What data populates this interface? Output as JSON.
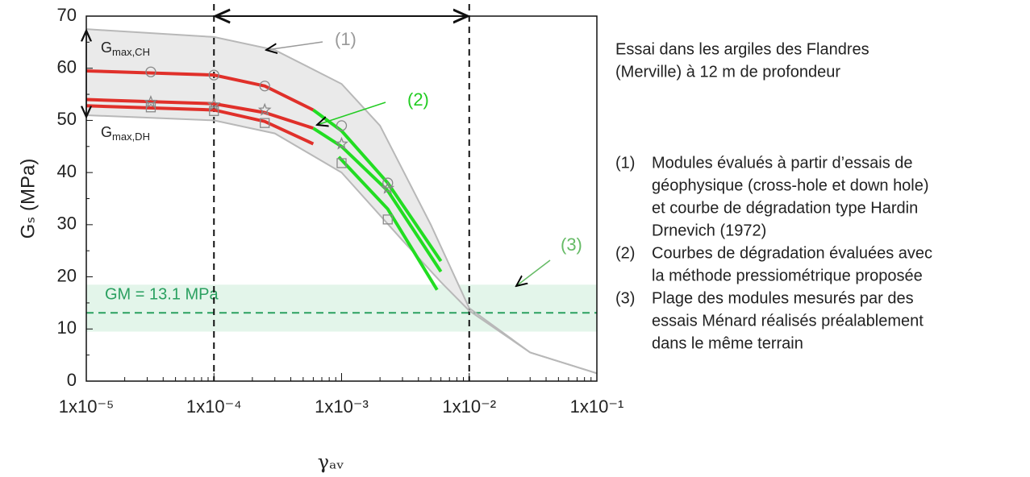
{
  "chart_data": {
    "type": "line",
    "xscale": "log",
    "y_label": "Gₛ (MPa)",
    "x_label": "γₐᵥ",
    "xlim": [
      1e-05,
      0.1
    ],
    "xticks": [
      {
        "value": 1e-05,
        "label": "1x10⁻⁵"
      },
      {
        "value": 0.0001,
        "label": "1x10⁻⁴"
      },
      {
        "value": 0.001,
        "label": "1x10⁻³"
      },
      {
        "value": 0.01,
        "label": "1x10⁻²"
      },
      {
        "value": 0.1,
        "label": "1x10⁻¹"
      }
    ],
    "ylim": [
      0,
      70
    ],
    "yticks": [
      0,
      10,
      20,
      30,
      40,
      50,
      60,
      70
    ],
    "vlines": [
      0.0001,
      0.01
    ],
    "band": [
      9.5,
      18.5
    ],
    "hline": {
      "value": 13.1,
      "label": "GM = 13.1 MPa"
    },
    "series": [
      {
        "color": "#b8b8b8",
        "x": [
          1e-05,
          0.0001,
          0.0003,
          0.001,
          0.002,
          0.005,
          0.01,
          0.03,
          0.1
        ],
        "values": [
          67.5,
          66,
          63.5,
          57,
          49,
          30,
          14,
          5.5,
          1.5
        ]
      },
      {
        "color": "#b8b8b8",
        "x": [
          1e-05,
          0.0001,
          0.0003,
          0.001,
          0.003,
          0.006,
          0.01,
          0.03,
          0.1
        ],
        "values": [
          51,
          50,
          47.5,
          40,
          27,
          19,
          13.5,
          5.5,
          1.5
        ]
      },
      {
        "color": "#e0302a",
        "x": [
          1e-05,
          0.0001,
          0.00025,
          0.0006
        ],
        "values": [
          59.5,
          58.7,
          56.6,
          52
        ]
      },
      {
        "color": "#e0302a",
        "x": [
          1e-05,
          0.0001,
          0.00025,
          0.0006
        ],
        "values": [
          54,
          53.2,
          51.5,
          48.5
        ]
      },
      {
        "color": "#e0302a",
        "x": [
          1e-05,
          0.0001,
          0.00025,
          0.0006
        ],
        "values": [
          52.8,
          52,
          49.8,
          45.5
        ]
      },
      {
        "color": "#22dd22",
        "x": [
          0.0006,
          0.001,
          0.0023,
          0.006
        ],
        "values": [
          52,
          48,
          38,
          23
        ]
      },
      {
        "color": "#22dd22",
        "x": [
          0.0006,
          0.001,
          0.0023,
          0.006
        ],
        "values": [
          48.5,
          45,
          36.5,
          21
        ]
      },
      {
        "color": "#22dd22",
        "x": [
          0.00095,
          0.0023,
          0.0056
        ],
        "values": [
          43,
          33,
          17.5
        ]
      },
      {
        "marker": "circle",
        "color": "#888888",
        "x": [
          3.2e-05,
          0.0001,
          0.00025,
          0.001,
          0.0023
        ],
        "values": [
          59.3,
          58.7,
          56.6,
          49,
          38
        ]
      },
      {
        "marker": "star",
        "color": "#888888",
        "x": [
          3.2e-05,
          0.0001,
          0.00025,
          0.001,
          0.0023
        ],
        "values": [
          53.5,
          53,
          52,
          45.5,
          37
        ]
      },
      {
        "marker": "square",
        "color": "#888888",
        "x": [
          3.2e-05,
          0.0001,
          0.00025,
          0.001,
          0.0023
        ],
        "values": [
          52.5,
          51.8,
          49.5,
          41.8,
          31
        ]
      }
    ],
    "annotations": [
      {
        "text": "(1)",
        "color": "#999999"
      },
      {
        "text": "(2)",
        "color": "#22cc22"
      },
      {
        "text": "(3)",
        "color": "#66bb66"
      },
      {
        "text": "G",
        "sub": "max,CH"
      },
      {
        "text": "G",
        "sub": "max,DH"
      }
    ]
  },
  "side": {
    "title": [
      "Essai dans les argiles des Flandres",
      "(Merville) à 12 m de profondeur"
    ],
    "notes": [
      {
        "num": "(1)",
        "lines": [
          "Modules évalués  à partir d’essais de",
          "géophysique (cross-hole et down hole)",
          "et courbe de dégradation type Hardin",
          "Drnevich (1972)"
        ]
      },
      {
        "num": "(2)",
        "lines": [
          "Courbes de dégradation évaluées avec",
          "la méthode pressiométrique proposée"
        ]
      },
      {
        "num": "(3)",
        "lines": [
          "Plage des modules mesurés par des",
          "essais Ménard réalisés préalablement",
          "dans le même terrain"
        ]
      }
    ]
  }
}
